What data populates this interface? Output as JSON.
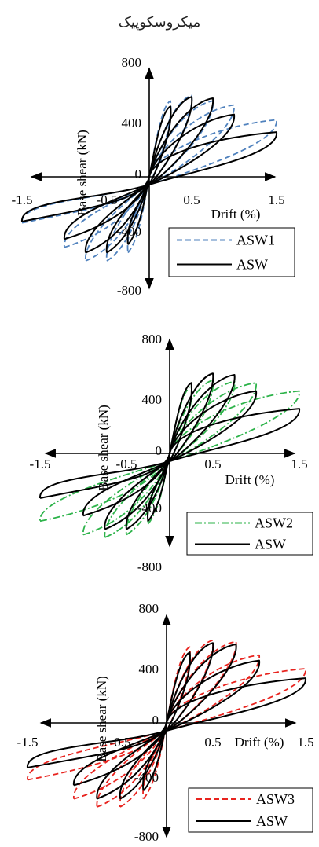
{
  "page_title": "میکروسکوپیک",
  "chart_data": [
    {
      "type": "line",
      "xlabel": "Drift (%)",
      "ylabel": "Base shear (kN)",
      "xlim": [
        -1.5,
        1.5
      ],
      "ylim": [
        -800,
        800
      ],
      "x_ticks": [
        "-1.5",
        "-0.5",
        "0.5",
        "1.5"
      ],
      "y_ticks": [
        "800",
        "400",
        "0",
        "-400",
        "-800"
      ],
      "legend_position": "bottom-right",
      "series": [
        {
          "name": "ASW1",
          "color": "#4f81bd",
          "style": "dashed",
          "peaks": [
            {
              "drift": 0.25,
              "shear": 560
            },
            {
              "drift": 0.5,
              "shear": 600
            },
            {
              "drift": 0.75,
              "shear": 560
            },
            {
              "drift": 1.0,
              "shear": 530
            },
            {
              "drift": 1.5,
              "shear": 420
            }
          ],
          "troughs": [
            {
              "drift": -0.25,
              "shear": -560
            },
            {
              "drift": -0.5,
              "shear": -620
            },
            {
              "drift": -0.75,
              "shear": -620
            },
            {
              "drift": -1.0,
              "shear": -520
            },
            {
              "drift": -1.5,
              "shear": -340
            }
          ]
        },
        {
          "name": "ASW",
          "color": "#000000",
          "style": "solid",
          "peaks": [
            {
              "drift": 0.25,
              "shear": 520
            },
            {
              "drift": 0.5,
              "shear": 590
            },
            {
              "drift": 0.75,
              "shear": 580
            },
            {
              "drift": 1.0,
              "shear": 460
            },
            {
              "drift": 1.5,
              "shear": 330
            }
          ],
          "troughs": [
            {
              "drift": -0.25,
              "shear": -500
            },
            {
              "drift": -0.5,
              "shear": -560
            },
            {
              "drift": -0.75,
              "shear": -560
            },
            {
              "drift": -1.0,
              "shear": -460
            },
            {
              "drift": -1.5,
              "shear": -330
            }
          ]
        }
      ]
    },
    {
      "type": "line",
      "xlabel": "Drift (%)",
      "ylabel": "Base shear (kN)",
      "xlim": [
        -1.5,
        1.5
      ],
      "ylim": [
        -800,
        800
      ],
      "x_ticks": [
        "-1.5",
        "-0.5",
        "0.5",
        "1.5"
      ],
      "y_ticks": [
        "800",
        "400",
        "0",
        "-400",
        "-800"
      ],
      "legend_position": "bottom-right",
      "series": [
        {
          "name": "ASW2",
          "color": "#2db34a",
          "style": "dashdot",
          "peaks": [
            {
              "drift": 0.25,
              "shear": 500
            },
            {
              "drift": 0.5,
              "shear": 540
            },
            {
              "drift": 0.75,
              "shear": 530
            },
            {
              "drift": 1.0,
              "shear": 520
            },
            {
              "drift": 1.5,
              "shear": 460
            }
          ],
          "troughs": [
            {
              "drift": -0.25,
              "shear": -520
            },
            {
              "drift": -0.5,
              "shear": -600
            },
            {
              "drift": -0.75,
              "shear": -620
            },
            {
              "drift": -1.0,
              "shear": -600
            },
            {
              "drift": -1.5,
              "shear": -500
            }
          ]
        },
        {
          "name": "ASW",
          "color": "#000000",
          "style": "solid",
          "peaks": [
            {
              "drift": 0.25,
              "shear": 520
            },
            {
              "drift": 0.5,
              "shear": 590
            },
            {
              "drift": 0.75,
              "shear": 580
            },
            {
              "drift": 1.0,
              "shear": 460
            },
            {
              "drift": 1.5,
              "shear": 330
            }
          ],
          "troughs": [
            {
              "drift": -0.25,
              "shear": -500
            },
            {
              "drift": -0.5,
              "shear": -560
            },
            {
              "drift": -0.75,
              "shear": -560
            },
            {
              "drift": -1.0,
              "shear": -460
            },
            {
              "drift": -1.5,
              "shear": -330
            }
          ]
        }
      ]
    },
    {
      "type": "line",
      "xlabel": "Drift (%)",
      "ylabel": "Base shear (kN)",
      "xlim": [
        -1.5,
        1.5
      ],
      "ylim": [
        -800,
        800
      ],
      "x_ticks": [
        "-1.5",
        "-0.5",
        "0.5",
        "1.5"
      ],
      "y_ticks": [
        "800",
        "400",
        "0",
        "-400",
        "-800"
      ],
      "legend_position": "bottom-right",
      "series": [
        {
          "name": "ASW3",
          "color": "#e8231e",
          "style": "dashed",
          "peaks": [
            {
              "drift": 0.25,
              "shear": 560
            },
            {
              "drift": 0.5,
              "shear": 610
            },
            {
              "drift": 0.75,
              "shear": 600
            },
            {
              "drift": 1.0,
              "shear": 500
            },
            {
              "drift": 1.5,
              "shear": 400
            }
          ],
          "troughs": [
            {
              "drift": -0.25,
              "shear": -560
            },
            {
              "drift": -0.5,
              "shear": -620
            },
            {
              "drift": -0.75,
              "shear": -620
            },
            {
              "drift": -1.0,
              "shear": -560
            },
            {
              "drift": -1.5,
              "shear": -420
            }
          ]
        },
        {
          "name": "ASW",
          "color": "#000000",
          "style": "solid",
          "peaks": [
            {
              "drift": 0.25,
              "shear": 520
            },
            {
              "drift": 0.5,
              "shear": 590
            },
            {
              "drift": 0.75,
              "shear": 580
            },
            {
              "drift": 1.0,
              "shear": 460
            },
            {
              "drift": 1.5,
              "shear": 330
            }
          ],
          "troughs": [
            {
              "drift": -0.25,
              "shear": -500
            },
            {
              "drift": -0.5,
              "shear": -560
            },
            {
              "drift": -0.75,
              "shear": -560
            },
            {
              "drift": -1.0,
              "shear": -460
            },
            {
              "drift": -1.5,
              "shear": -330
            }
          ]
        }
      ]
    }
  ]
}
